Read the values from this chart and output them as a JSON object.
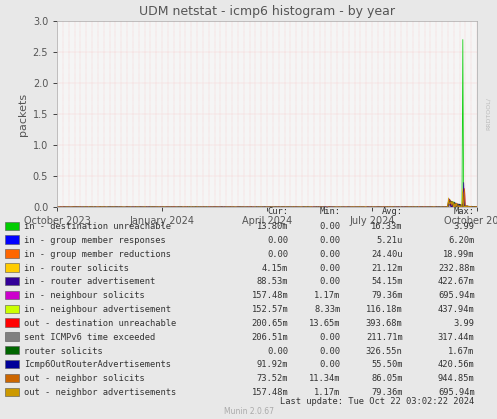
{
  "title": "UDM netstat - icmp6 histogram - by year",
  "ylabel": "packets",
  "background_color": "#e8e8e8",
  "plot_background": "#f5f5f5",
  "ylim": [
    0.0,
    3.0
  ],
  "yticks": [
    0.0,
    0.5,
    1.0,
    1.5,
    2.0,
    2.5,
    3.0
  ],
  "xtick_labels": [
    "October 2023",
    "January 2024",
    "April 2024",
    "July 2024",
    "October 2024"
  ],
  "legend_entries": [
    {
      "label": "in - destination unreachable",
      "color": "#00cc00",
      "cur": "13.80m",
      "min": "0.00",
      "avg": "16.33m",
      "max": "3.99"
    },
    {
      "label": "in - group member responses",
      "color": "#0000ff",
      "cur": "0.00",
      "min": "0.00",
      "avg": "5.21u",
      "max": "6.20m"
    },
    {
      "label": "in - group member reductions",
      "color": "#ff6600",
      "cur": "0.00",
      "min": "0.00",
      "avg": "24.40u",
      "max": "18.99m"
    },
    {
      "label": "in - router solicits",
      "color": "#ffcc00",
      "cur": "4.15m",
      "min": "0.00",
      "avg": "21.12m",
      "max": "232.88m"
    },
    {
      "label": "in - router advertisement",
      "color": "#330099",
      "cur": "88.53m",
      "min": "0.00",
      "avg": "54.15m",
      "max": "422.67m"
    },
    {
      "label": "in - neighbour solicits",
      "color": "#cc00cc",
      "cur": "157.48m",
      "min": "1.17m",
      "avg": "79.36m",
      "max": "695.94m"
    },
    {
      "label": "in - neighbour advertisement",
      "color": "#ccff00",
      "cur": "152.57m",
      "min": "8.33m",
      "avg": "116.18m",
      "max": "437.94m"
    },
    {
      "label": "out - destination unreachable",
      "color": "#ff0000",
      "cur": "200.65m",
      "min": "13.65m",
      "avg": "393.68m",
      "max": "3.99"
    },
    {
      "label": "sent ICMPv6 time exceeded",
      "color": "#808080",
      "cur": "206.51m",
      "min": "0.00",
      "avg": "211.71m",
      "max": "317.44m"
    },
    {
      "label": "router solicits",
      "color": "#006600",
      "cur": "0.00",
      "min": "0.00",
      "avg": "326.55n",
      "max": "1.67m"
    },
    {
      "label": "Icmp6OutRouterAdvertisements",
      "color": "#000099",
      "cur": "91.92m",
      "min": "0.00",
      "avg": "55.50m",
      "max": "420.56m"
    },
    {
      "label": "out - neighbor solicits",
      "color": "#cc6600",
      "cur": "73.52m",
      "min": "11.34m",
      "avg": "86.05m",
      "max": "944.85m"
    },
    {
      "label": "out - neighbor advertisements",
      "color": "#cc9900",
      "cur": "157.48m",
      "min": "1.17m",
      "avg": "79.36m",
      "max": "695.94m"
    }
  ],
  "last_update": "Last update: Tue Oct 22 03:02:22 2024",
  "munin_version": "Munin 2.0.67"
}
